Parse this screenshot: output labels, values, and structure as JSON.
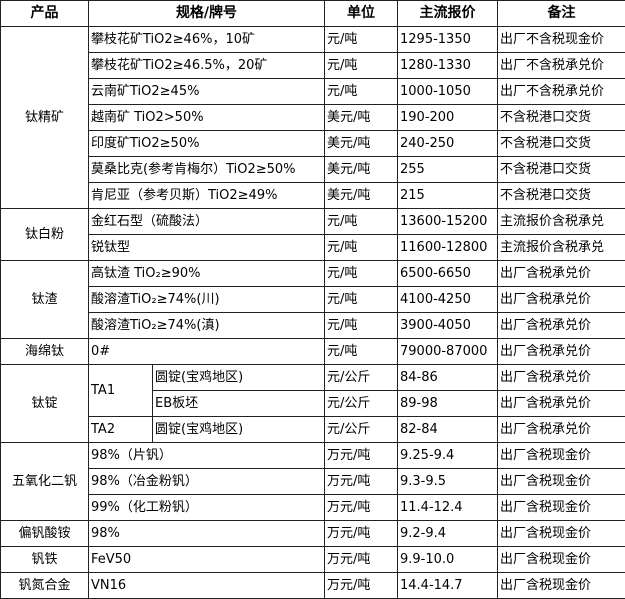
{
  "header": {
    "product": "产品",
    "spec": "规格/牌号",
    "unit": "单位",
    "price": "主流报价",
    "note": "备注"
  },
  "groups": [
    {
      "product": "钛精矿",
      "rows": [
        {
          "spec": "攀枝花矿TiO2≥46%，10矿",
          "unit": "元/吨",
          "price": "1295-1350",
          "note": "出厂不含税现金价"
        },
        {
          "spec": "攀枝花矿TiO2≥46.5%，20矿",
          "unit": "元/吨",
          "price": "1280-1330",
          "note": "出厂不含税承兑价"
        },
        {
          "spec": "云南矿TiO2≥45%",
          "unit": "元/吨",
          "price": "1000-1050",
          "note": "出厂不含税承兑价"
        },
        {
          "spec": "越南矿 TiO2>50%",
          "unit": "美元/吨",
          "price": "190-200",
          "note": "不含税港口交货"
        },
        {
          "spec": "印度矿TiO2≥50%",
          "unit": "美元/吨",
          "price": "240-250",
          "note": "不含税港口交货"
        },
        {
          "spec": "莫桑比克(参考肯梅尔）TiO2≥50%",
          "unit": "美元/吨",
          "price": "255",
          "note": "不含税港口交货"
        },
        {
          "spec": "肯尼亚（参考贝斯）TiO2≥49%",
          "unit": "美元/吨",
          "price": "215",
          "note": "不含税港口交货"
        }
      ]
    },
    {
      "product": "钛白粉",
      "rows": [
        {
          "spec": "金红石型（硫酸法）",
          "unit": "元/吨",
          "price": "13600-15200",
          "note": "主流报价含税承兑"
        },
        {
          "spec": "锐钛型",
          "unit": "元/吨",
          "price": "11600-12800",
          "note": "主流报价含税承兑"
        }
      ]
    },
    {
      "product": "钛渣",
      "rows": [
        {
          "spec": "高钛渣 TiO₂≥90%",
          "unit": "元/吨",
          "price": "6500-6650",
          "note": "出厂含税承兑价"
        },
        {
          "spec": "酸溶渣TiO₂≥74%(川)",
          "unit": "元/吨",
          "price": "4100-4250",
          "note": "出厂含税承兑价"
        },
        {
          "spec": "酸溶渣TiO₂≥74%(滇)",
          "unit": "元/吨",
          "price": "3900-4050",
          "note": "出厂含税承兑价"
        }
      ]
    },
    {
      "product": "海绵钛",
      "rows": [
        {
          "spec": "0#",
          "unit": "元/吨",
          "price": "79000-87000",
          "note": "出厂含税承兑价"
        }
      ]
    },
    {
      "product": "钛锭",
      "rows": [
        {
          "grade": "TA1",
          "grade_span": 2,
          "spec": "圆锭(宝鸡地区)",
          "unit": "元/公斤",
          "price": "84-86",
          "note": "出厂含税承兑价"
        },
        {
          "spec": "EB板坯",
          "unit": "元/公斤",
          "price": "89-98",
          "note": "出厂含税承兑价"
        },
        {
          "grade": "TA2",
          "grade_span": 1,
          "spec": "圆锭(宝鸡地区)",
          "unit": "元/公斤",
          "price": "82-84",
          "note": "出厂含税承兑价"
        }
      ]
    },
    {
      "product": "五氧化二钒",
      "rows": [
        {
          "spec": "98%（片钒）",
          "unit": "万元/吨",
          "price": "9.25-9.4",
          "note": "出厂含税现金价"
        },
        {
          "spec": "98%（冶金粉钒）",
          "unit": "万元/吨",
          "price": "9.3-9.5",
          "note": "出厂含税现金价"
        },
        {
          "spec": "99%（化工粉钒）",
          "unit": "万元/吨",
          "price": "11.4-12.4",
          "note": "出厂含税现金价"
        }
      ]
    },
    {
      "product": "偏钒酸铵",
      "rows": [
        {
          "spec": "98%",
          "unit": "万元/吨",
          "price": "9.2-9.4",
          "note": "出厂含税现金价"
        }
      ]
    },
    {
      "product": "钒铁",
      "rows": [
        {
          "spec": "FeV50",
          "unit": "万元/吨",
          "price": "9.9-10.0",
          "note": "出厂含税现金价"
        }
      ]
    },
    {
      "product": "钒氮合金",
      "rows": [
        {
          "spec": "VN16",
          "unit": "万元/吨",
          "price": "14.4-14.7",
          "note": "出厂含税现金价"
        }
      ]
    }
  ]
}
